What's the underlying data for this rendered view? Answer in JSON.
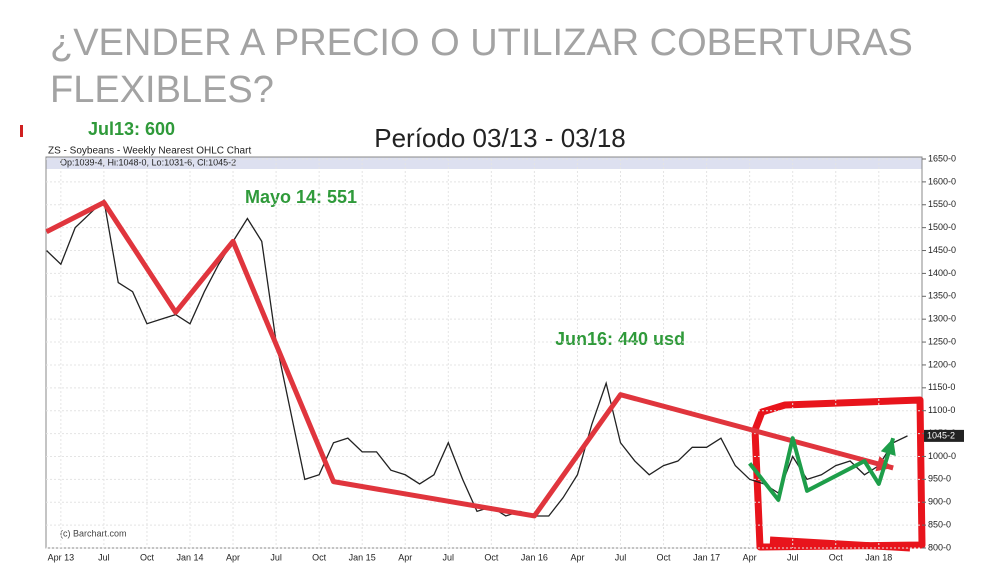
{
  "chart_data": {
    "type": "line",
    "title": "¿VENDER A PRECIO O UTILIZAR COBERTURAS",
    "title_line2": "FLEXIBLES?",
    "subtitle": "Período 03/13 - 03/18",
    "chart_header": "ZS - Soybeans - Weekly Nearest OHLC Chart",
    "chart_info": "Op:1039-4, Hi:1048-0, Lo:1031-6, Cl:1045-2",
    "credit": "(c) Barchart.com",
    "last_price": {
      "value": 1045,
      "label": "1045-2"
    },
    "annotations": [
      "Jul13: 600",
      "Mayo 14: 551",
      "Jun16: 440 usd"
    ],
    "categories": [
      null,
      "Apr 13",
      null,
      null,
      "Jul",
      null,
      null,
      "Oct",
      null,
      null,
      "Jan 14",
      null,
      null,
      "Apr",
      null,
      null,
      "Jul",
      null,
      null,
      "Oct",
      null,
      null,
      "Jan 15",
      null,
      null,
      "Apr",
      null,
      null,
      "Jul",
      null,
      null,
      "Oct",
      null,
      null,
      "Jan 16",
      null,
      null,
      "Apr",
      null,
      null,
      "Jul",
      null,
      null,
      "Oct",
      null,
      null,
      "Jan 17",
      null,
      null,
      "Apr",
      null,
      null,
      "Jul",
      null,
      null,
      "Oct",
      null,
      null,
      "Jan 18",
      null,
      null
    ],
    "series": [
      {
        "color": "#222222",
        "values": [
          1450,
          1420,
          1500,
          1530,
          1560,
          1380,
          1360,
          1290,
          1300,
          1310,
          1290,
          1360,
          1420,
          1470,
          1520,
          1470,
          1250,
          1100,
          950,
          960,
          1030,
          1040,
          1010,
          1010,
          970,
          960,
          940,
          960,
          1030,
          950,
          880,
          890,
          870,
          880,
          870,
          870,
          910,
          960,
          1070,
          1160,
          1030,
          990,
          960,
          980,
          990,
          1020,
          1020,
          1040,
          980,
          950,
          940,
          920,
          1000,
          950,
          960,
          980,
          990,
          960,
          980,
          1030,
          1045
        ]
      }
    ],
    "trend": {
      "color": "#e0353d",
      "x": [
        0,
        4,
        9,
        13,
        20,
        34,
        40,
        59
      ],
      "values": [
        1491,
        1555,
        1315,
        1470,
        945,
        870,
        1135,
        975
      ]
    },
    "scenario": {
      "color": "#1e9e4a",
      "x": [
        49,
        51,
        52,
        53,
        57,
        58,
        59
      ],
      "values": [
        985,
        905,
        1040,
        925,
        990,
        940,
        1040
      ]
    },
    "ylim": [
      800,
      1650
    ],
    "yticks": [
      {
        "value": 800,
        "label": "800-0"
      },
      {
        "value": 850,
        "label": "850-0"
      },
      {
        "value": 900,
        "label": "900-0"
      },
      {
        "value": 950,
        "label": "950-0"
      },
      {
        "value": 1000,
        "label": "1000-0"
      },
      {
        "value": 1050,
        "label": "1050-0"
      },
      {
        "value": 1100,
        "label": "1100-0"
      },
      {
        "value": 1150,
        "label": "1150-0"
      },
      {
        "value": 1200,
        "label": "1200-0"
      },
      {
        "value": 1250,
        "label": "1250-0"
      },
      {
        "value": 1300,
        "label": "1300-0"
      },
      {
        "value": 1350,
        "label": "1350-0"
      },
      {
        "value": 1400,
        "label": "1400-0"
      },
      {
        "value": 1450,
        "label": "1450-0"
      },
      {
        "value": 1500,
        "label": "1500-0"
      },
      {
        "value": 1550,
        "label": "1550-0"
      },
      {
        "value": 1600,
        "label": "1600-0"
      },
      {
        "value": 1650,
        "label": "1650-0"
      }
    ],
    "grid": true
  }
}
